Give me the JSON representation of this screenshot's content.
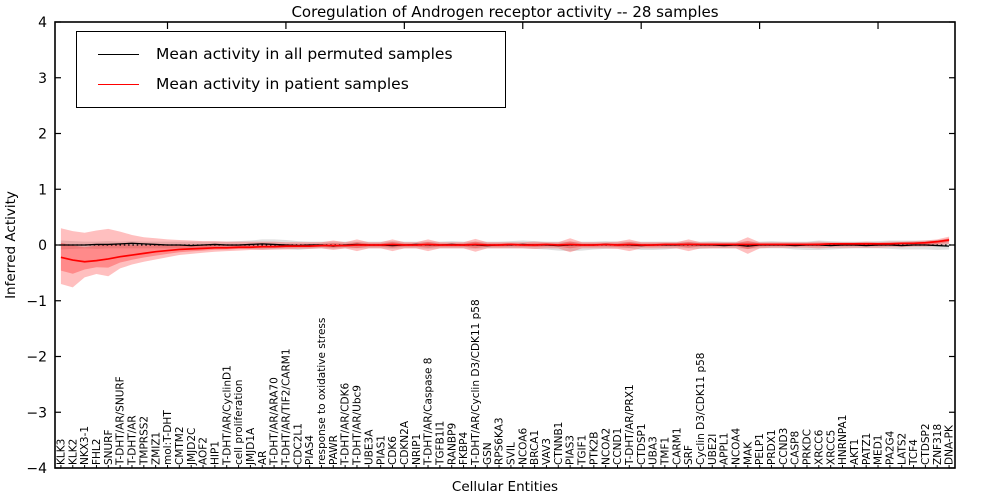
{
  "title": "Coregulation of Androgen receptor activity -- 28 samples",
  "axes": {
    "ylabel": "Inferred Activity",
    "xlabel": "Cellular Entities",
    "ylim": [
      -4,
      4
    ],
    "yticks": [
      -4,
      -3,
      -2,
      -1,
      0,
      1,
      2,
      3,
      4
    ]
  },
  "legend": {
    "entries": [
      {
        "label": "Mean activity in all permuted samples",
        "color": "#000000"
      },
      {
        "label": "Mean activity in patient samples",
        "color": "#ff0000"
      }
    ]
  },
  "chart_data": {
    "type": "line",
    "title": "Coregulation of Androgen receptor activity -- 28 samples",
    "xlabel": "Cellular Entities",
    "ylabel": "Inferred Activity",
    "ylim": [
      -4,
      4
    ],
    "grid": false,
    "legend_position": "upper left",
    "zero_reference_line": true,
    "categories": [
      "KLK3",
      "KLK2",
      "NKX3-1",
      "FHL2",
      "SNURF",
      "T-DHT/AR/SNURF",
      "T-DHT/AR",
      "TMPRSS2",
      "ZMIZ1",
      "mol:T-DHT",
      "CMTM2",
      "JMJD2C",
      "AOF2",
      "HIP1",
      "T-DHT/AR/CyclinD1",
      "cell proliferation",
      "JMJD1A",
      "AR",
      "T-DHT/AR/ARA70",
      "T-DHT/AR/TIF2/CARM1",
      "CDC2L1",
      "PIAS4",
      "response to oxidative stress",
      "PAWR",
      "T-DHT/AR/CDK6",
      "T-DHT/AR/Ubc9",
      "UBE3A",
      "PIAS1",
      "CDK6",
      "CDKN2A",
      "NRIP1",
      "T-DHT/AR/Caspase 8",
      "TGFB1I1",
      "RANBP9",
      "FKBP4",
      "T-DHT/AR/Cyclin D3/CDK11 p58",
      "GSN",
      "RPS6KA3",
      "SVIL",
      "NCOA6",
      "BRCA1",
      "VAV3",
      "CTNNB1",
      "PIAS3",
      "TGIF1",
      "PTK2B",
      "NCOA2",
      "CCND1",
      "T-DHT/AR/PRX1",
      "CTDSP1",
      "UBA3",
      "TMF1",
      "CARM1",
      "SRF",
      "Cyclin D3/CDK11 p58",
      "UBE2I",
      "APPL1",
      "NCOA4",
      "MAK",
      "PELP1",
      "PRDX1",
      "CCND3",
      "CASP8",
      "PRKDC",
      "XRCC6",
      "XRCC5",
      "HNRNPA1",
      "AKT1",
      "PATZ1",
      "MED1",
      "PA2G4",
      "LATS2",
      "TCF4",
      "CTDSP2",
      "ZNF318",
      "DNA-PK"
    ],
    "series": [
      {
        "name": "Mean activity in all permuted samples",
        "color": "#000000",
        "band_color": "#bbbbbb",
        "values": [
          0.0,
          0.0,
          0.0,
          0.01,
          0.01,
          0.02,
          0.03,
          0.02,
          0.01,
          0.0,
          0.0,
          -0.01,
          0.0,
          0.01,
          0.0,
          0.0,
          0.01,
          0.02,
          0.01,
          0.0,
          -0.01,
          0.0,
          0.0,
          -0.02,
          0.0,
          0.01,
          0.0,
          0.0,
          -0.01,
          0.0,
          0.01,
          0.0,
          0.0,
          0.01,
          0.0,
          0.0,
          -0.01,
          0.0,
          0.0,
          0.01,
          0.0,
          0.0,
          -0.01,
          0.0,
          0.0,
          0.0,
          0.01,
          0.0,
          0.0,
          -0.01,
          0.0,
          0.0,
          0.0,
          0.01,
          0.0,
          0.0,
          -0.01,
          0.0,
          -0.02,
          0.0,
          0.0,
          0.0,
          -0.01,
          0.0,
          0.0,
          -0.01,
          0.0,
          0.0,
          -0.01,
          0.0,
          0.0,
          -0.01,
          0.0,
          0.0,
          -0.01,
          -0.02
        ],
        "band_upper": [
          0.08,
          0.07,
          0.06,
          0.06,
          0.07,
          0.06,
          0.07,
          0.06,
          0.06,
          0.06,
          0.06,
          0.06,
          0.06,
          0.06,
          0.06,
          0.07,
          0.08,
          0.1,
          0.1,
          0.09,
          0.07,
          0.06,
          0.06,
          0.06,
          0.06,
          0.06,
          0.06,
          0.06,
          0.07,
          0.06,
          0.06,
          0.06,
          0.06,
          0.07,
          0.06,
          0.06,
          0.06,
          0.06,
          0.07,
          0.08,
          0.07,
          0.06,
          0.06,
          0.06,
          0.06,
          0.06,
          0.07,
          0.06,
          0.06,
          0.06,
          0.06,
          0.06,
          0.06,
          0.06,
          0.06,
          0.07,
          0.06,
          0.06,
          0.06,
          0.06,
          0.07,
          0.06,
          0.06,
          0.06,
          0.08,
          0.07,
          0.06,
          0.06,
          0.06,
          0.07,
          0.08,
          0.08,
          0.08,
          0.08,
          0.09,
          0.1
        ],
        "band_lower": [
          -0.08,
          -0.07,
          -0.06,
          -0.07,
          -0.06,
          -0.06,
          -0.06,
          -0.06,
          -0.06,
          -0.06,
          -0.06,
          -0.07,
          -0.06,
          -0.06,
          -0.06,
          -0.06,
          -0.07,
          -0.08,
          -0.08,
          -0.07,
          -0.09,
          -0.07,
          -0.06,
          -0.07,
          -0.06,
          -0.06,
          -0.06,
          -0.06,
          -0.07,
          -0.06,
          -0.06,
          -0.07,
          -0.06,
          -0.06,
          -0.06,
          -0.07,
          -0.06,
          -0.06,
          -0.06,
          -0.06,
          -0.07,
          -0.08,
          -0.1,
          -0.11,
          -0.1,
          -0.08,
          -0.07,
          -0.06,
          -0.06,
          -0.09,
          -0.09,
          -0.08,
          -0.06,
          -0.06,
          -0.07,
          -0.06,
          -0.06,
          -0.06,
          -0.07,
          -0.06,
          -0.06,
          -0.06,
          -0.08,
          -0.09,
          -0.09,
          -0.08,
          -0.07,
          -0.06,
          -0.06,
          -0.06,
          -0.07,
          -0.08,
          -0.08,
          -0.08,
          -0.09,
          -0.08
        ]
      },
      {
        "name": "Mean activity in patient samples",
        "color": "#ff0000",
        "band_color": "#ff0000",
        "values": [
          -0.22,
          -0.27,
          -0.3,
          -0.28,
          -0.25,
          -0.21,
          -0.18,
          -0.15,
          -0.12,
          -0.1,
          -0.08,
          -0.07,
          -0.06,
          -0.05,
          -0.05,
          -0.04,
          -0.04,
          -0.03,
          -0.03,
          -0.02,
          -0.02,
          -0.02,
          -0.01,
          -0.01,
          -0.01,
          0.0,
          0.0,
          0.0,
          0.01,
          0.0,
          0.0,
          0.01,
          0.0,
          0.0,
          0.0,
          0.01,
          0.0,
          0.0,
          0.01,
          0.0,
          0.0,
          0.01,
          0.0,
          0.01,
          0.0,
          0.0,
          0.01,
          0.0,
          0.01,
          0.0,
          0.0,
          0.01,
          0.01,
          0.01,
          0.01,
          0.01,
          0.01,
          0.01,
          0.01,
          0.01,
          0.01,
          0.01,
          0.01,
          0.01,
          0.01,
          0.02,
          0.02,
          0.02,
          0.02,
          0.02,
          0.02,
          0.03,
          0.03,
          0.04,
          0.06,
          0.09
        ],
        "band_upper": [
          0.3,
          0.25,
          0.22,
          0.26,
          0.29,
          0.24,
          0.18,
          0.14,
          0.12,
          0.1,
          0.09,
          0.08,
          0.07,
          0.07,
          0.06,
          0.06,
          0.06,
          0.06,
          0.06,
          0.05,
          0.05,
          0.05,
          0.05,
          0.08,
          0.05,
          0.1,
          0.05,
          0.05,
          0.1,
          0.05,
          0.05,
          0.1,
          0.05,
          0.05,
          0.05,
          0.11,
          0.05,
          0.05,
          0.05,
          0.05,
          0.06,
          0.05,
          0.05,
          0.12,
          0.05,
          0.05,
          0.05,
          0.06,
          0.1,
          0.05,
          0.05,
          0.05,
          0.05,
          0.1,
          0.05,
          0.05,
          0.05,
          0.05,
          0.14,
          0.05,
          0.05,
          0.05,
          0.05,
          0.05,
          0.06,
          0.05,
          0.05,
          0.05,
          0.06,
          0.05,
          0.06,
          0.06,
          0.07,
          0.08,
          0.1,
          0.15
        ],
        "band_lower": [
          -0.7,
          -0.76,
          -0.58,
          -0.52,
          -0.56,
          -0.42,
          -0.35,
          -0.3,
          -0.26,
          -0.22,
          -0.18,
          -0.16,
          -0.14,
          -0.12,
          -0.11,
          -0.1,
          -0.09,
          -0.09,
          -0.08,
          -0.08,
          -0.07,
          -0.07,
          -0.06,
          -0.09,
          -0.06,
          -0.11,
          -0.06,
          -0.06,
          -0.11,
          -0.06,
          -0.06,
          -0.11,
          -0.06,
          -0.06,
          -0.06,
          -0.12,
          -0.06,
          -0.06,
          -0.06,
          -0.06,
          -0.07,
          -0.06,
          -0.06,
          -0.13,
          -0.06,
          -0.06,
          -0.06,
          -0.07,
          -0.11,
          -0.06,
          -0.06,
          -0.06,
          -0.06,
          -0.11,
          -0.06,
          -0.06,
          -0.06,
          -0.06,
          -0.16,
          -0.06,
          -0.05,
          -0.05,
          -0.05,
          -0.05,
          -0.06,
          -0.05,
          -0.05,
          -0.05,
          -0.05,
          -0.05,
          -0.04,
          -0.04,
          -0.03,
          -0.03,
          -0.02,
          0.02
        ]
      }
    ]
  }
}
